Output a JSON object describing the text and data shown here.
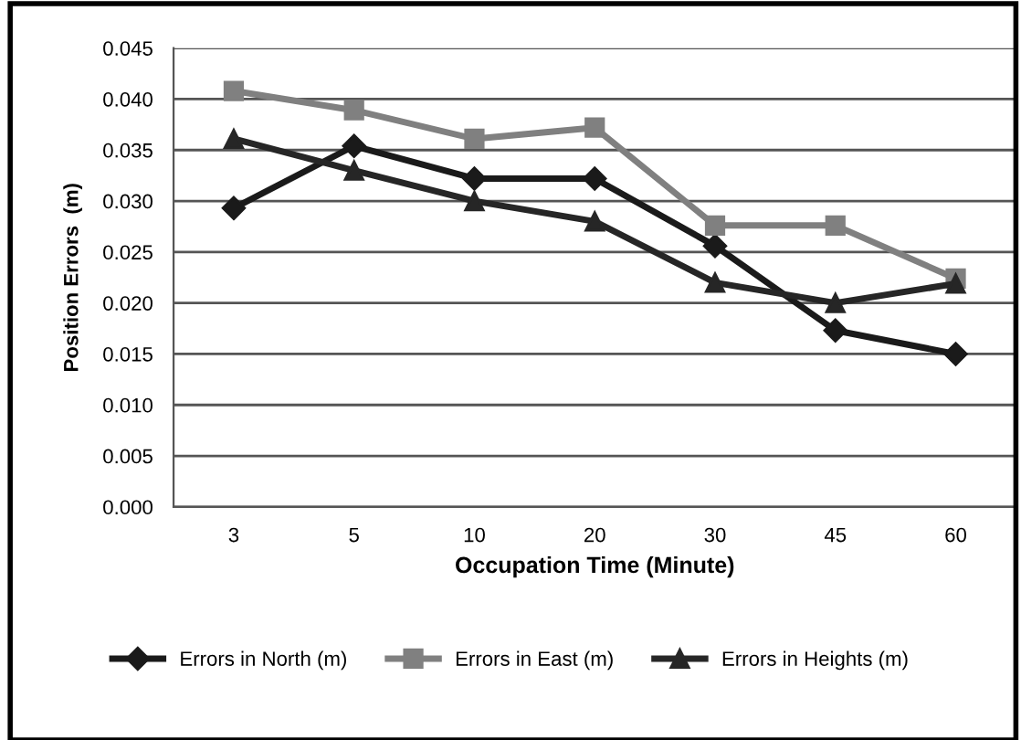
{
  "chart_data": {
    "type": "line",
    "xlabel": "Occupation Time (Minute)",
    "ylabel": "Position Errors  (m)",
    "categories": [
      "3",
      "5",
      "10",
      "20",
      "30",
      "45",
      "60"
    ],
    "series": [
      {
        "name": "Errors in North (m)",
        "color": "#1a1a1a",
        "marker": "diamond",
        "values": [
          0.0293,
          0.0354,
          0.0322,
          0.0322,
          0.0256,
          0.0173,
          0.015
        ]
      },
      {
        "name": "Errors in East (m)",
        "color": "#808080",
        "marker": "square",
        "values": [
          0.0408,
          0.0389,
          0.0361,
          0.0372,
          0.0276,
          0.0276,
          0.0224
        ]
      },
      {
        "name": "Errors in Heights (m)",
        "color": "#262626",
        "marker": "triangle",
        "values": [
          0.0361,
          0.033,
          0.03,
          0.028,
          0.022,
          0.02,
          0.0219
        ]
      }
    ],
    "ylim": [
      0,
      0.045
    ],
    "yticks": [
      {
        "value": 0,
        "label": "0.000"
      },
      {
        "value": 0.005,
        "label": "0.005"
      },
      {
        "value": 0.01,
        "label": "0.010"
      },
      {
        "value": 0.015,
        "label": "0.015"
      },
      {
        "value": 0.02,
        "label": "0.020"
      },
      {
        "value": 0.025,
        "label": "0.025"
      },
      {
        "value": 0.03,
        "label": "0.030"
      },
      {
        "value": 0.035,
        "label": "0.035"
      },
      {
        "value": 0.04,
        "label": "0.040"
      },
      {
        "value": 0.045,
        "label": "0.045"
      }
    ],
    "grid": "y",
    "legend": "bottom",
    "line_style": "solid"
  }
}
